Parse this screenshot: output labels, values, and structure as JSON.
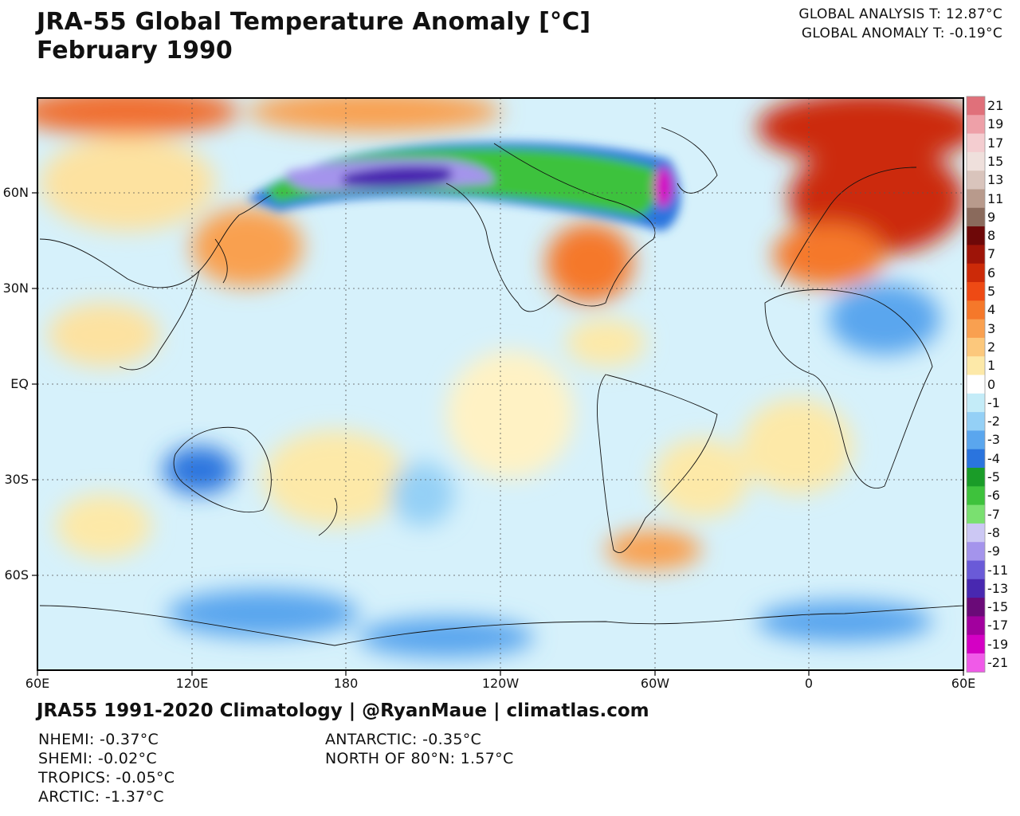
{
  "title": "JRA-55 Global Temperature Anomaly [°C]",
  "subtitle": "February 1990",
  "global": {
    "analysis": "GLOBAL ANALYSIS T: 12.87°C",
    "anomaly": "GLOBAL ANOMALY T: -0.19°C"
  },
  "axes": {
    "lat_labels": [
      "60N",
      "30N",
      "EQ",
      "30S",
      "60S"
    ],
    "lon_labels": [
      "60E",
      "120E",
      "180",
      "120W",
      "60W",
      "0",
      "60E"
    ]
  },
  "colorbar": {
    "labels": [
      "21",
      "19",
      "17",
      "15",
      "13",
      "11",
      "9",
      "8",
      "7",
      "6",
      "5",
      "4",
      "3",
      "2",
      "1",
      "0",
      "-1",
      "-2",
      "-3",
      "-4",
      "-5",
      "-6",
      "-7",
      "-8",
      "-9",
      "-11",
      "-13",
      "-15",
      "-17",
      "-19",
      "-21"
    ],
    "colors": [
      "#e0707a",
      "#eea0a8",
      "#f4cdd0",
      "#efe0dc",
      "#d9c4bc",
      "#b89a8c",
      "#8a6a5c",
      "#6e0808",
      "#9e1408",
      "#cc2a08",
      "#ee4a14",
      "#f5782a",
      "#f9a050",
      "#fcc87c",
      "#fde9a8",
      "#ffffff",
      "#c4ecf8",
      "#94d0f6",
      "#5aa6ee",
      "#2a74de",
      "#1a9c28",
      "#3ec23c",
      "#7ae070",
      "#ccc8f4",
      "#a494ec",
      "#6a5ad8",
      "#4828b0",
      "#6a0a78",
      "#a2009e",
      "#d400c4",
      "#f05ae8"
    ]
  },
  "credit": "JRA55 1991-2020 Climatology | @RyanMaue | climatlas.com",
  "stats": {
    "nhemi": "NHEMI: -0.37°C",
    "shemi": "SHEMI: -0.02°C",
    "tropics": "TROPICS: -0.05°C",
    "arctic": "ARCTIC: -1.37°C",
    "antarctic": "ANTARCTIC: -0.35°C",
    "north80": "NORTH OF 80°N: 1.57°C"
  }
}
